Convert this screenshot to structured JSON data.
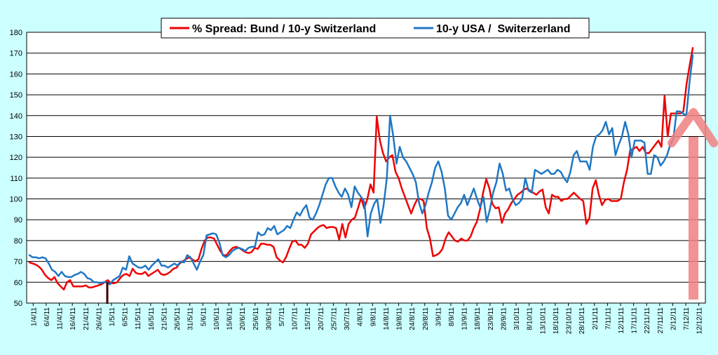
{
  "colors": {
    "background": "#ccffff",
    "plot_area": "#ffffff",
    "series_spread": "#ee0000",
    "series_usa": "#1f77c4",
    "arrow": "#f08080"
  },
  "chart_data": {
    "type": "line",
    "title": "",
    "xlabel": "",
    "ylabel": "",
    "ylim": [
      50,
      180
    ],
    "yticks": [
      50,
      60,
      70,
      80,
      90,
      100,
      110,
      120,
      130,
      140,
      150,
      160,
      170,
      180
    ],
    "grid": "horizontal",
    "legend": "top-center",
    "x_tick_labels": [
      "1/4/11",
      "6/4/11",
      "11/4/11",
      "16/4/11",
      "21/4/11",
      "26/4/11",
      "1/5/11",
      "6/5/11",
      "11/5/11",
      "16/5/11",
      "21/5/11",
      "26/5/11",
      "31/5/11",
      "5/6/11",
      "10/6/11",
      "15/6/11",
      "20/6/11",
      "25/6/11",
      "30/6/11",
      "5/7/11",
      "10/7/11",
      "15/7/11",
      "20/7/11",
      "25/7/11",
      "30/7/11",
      "4/8/11",
      "9/8/11",
      "14/8/11",
      "19/8/11",
      "24/8/11",
      "29/8/11",
      "3/9/11",
      "8/9/11",
      "13/9/11",
      "18/9/11",
      "23/9/11",
      "28/9/11",
      "3/10/11",
      "8/10/11",
      "13/10/11",
      "18/10/11",
      "23/10/11",
      "28/10/11",
      "2/11/11",
      "7/11/11",
      "12/11/11",
      "17/11/11",
      "22/11/11",
      "27/11/11",
      "2/12/11",
      "7/12/11",
      "12/12/11"
    ],
    "series": [
      {
        "name": "% Spread: Bund / 10-y Switzerland",
        "values": [
          69.5,
          69,
          68.5,
          67.5,
          66,
          63.5,
          62,
          61,
          62.5,
          59.5,
          58,
          56.5,
          60,
          61,
          58,
          58,
          58,
          58,
          58.5,
          57.5,
          57.5,
          58,
          58.5,
          59,
          60,
          61,
          59.5,
          59.5,
          60,
          62,
          63.5,
          64,
          63,
          66.5,
          64.5,
          64,
          64,
          65,
          63,
          64,
          65,
          66,
          64,
          63.5,
          64,
          65,
          66.5,
          67,
          69,
          70,
          71,
          72,
          71,
          70,
          71,
          76,
          80,
          81.5,
          81.5,
          81,
          78,
          75,
          73,
          73,
          75,
          76.5,
          77,
          76.5,
          75.5,
          74.5,
          74,
          74.5,
          76.5,
          76,
          78.5,
          78.5,
          78,
          78,
          77,
          72,
          70.5,
          69.5,
          72,
          76,
          79.5,
          80,
          78,
          78,
          76.5,
          78.5,
          83,
          84.5,
          86,
          87,
          87.5,
          86,
          86.5,
          86.5,
          86,
          80.5,
          88,
          81.5,
          88,
          90,
          91,
          95.5,
          100.5,
          95.5,
          100,
          107,
          103,
          139.5,
          128,
          122,
          118,
          120,
          121,
          113,
          110,
          105,
          101,
          97,
          93,
          97,
          100,
          100,
          99,
          86,
          81,
          72.5,
          73,
          74,
          76,
          81,
          84,
          82,
          80,
          79.5,
          81,
          80,
          80,
          82,
          86,
          89,
          95,
          103,
          109.5,
          105,
          97.5,
          95.5,
          96,
          88.5,
          93,
          95,
          98,
          100,
          102,
          103,
          104.5,
          105,
          104,
          103,
          102,
          103.5,
          104.5,
          96,
          93,
          102,
          101,
          101,
          99,
          100,
          100,
          101.5,
          103,
          101.5,
          100,
          99,
          88,
          91,
          105,
          109,
          102,
          97,
          99.5,
          100,
          99,
          99,
          99,
          100,
          108,
          114,
          123.5,
          124,
          125,
          123,
          125,
          122,
          122,
          124,
          126,
          128,
          125,
          149.5,
          130,
          141,
          141,
          141,
          141,
          142,
          155,
          164,
          172.5
        ]
      },
      {
        "name": "10-y USA /  Switerzerland",
        "values": [
          73,
          72,
          72,
          71.5,
          72,
          71.5,
          69,
          66,
          65,
          63,
          65,
          63,
          62.5,
          62.5,
          63.5,
          64,
          65,
          64,
          62,
          61.5,
          60,
          60,
          59.5,
          60,
          60,
          59,
          61,
          62,
          63,
          67,
          66,
          72.5,
          69,
          68,
          67,
          67,
          68,
          66,
          68,
          69.5,
          71,
          68,
          68,
          67,
          68,
          69,
          68,
          70,
          69.5,
          73,
          72,
          69,
          66,
          70,
          73,
          82.5,
          83,
          83.5,
          83,
          79,
          73,
          72,
          73,
          75,
          76,
          76.5,
          76,
          75,
          76.5,
          77,
          77,
          84,
          82.5,
          83,
          86,
          85,
          87,
          83,
          84,
          85,
          87,
          86,
          90,
          93.5,
          92,
          95,
          97,
          91,
          90,
          93,
          97,
          102,
          107,
          110,
          110,
          106,
          103,
          101,
          105,
          102,
          96,
          106,
          103,
          101,
          98.5,
          82,
          93,
          97.5,
          100,
          88.5,
          97,
          110,
          140,
          130,
          117,
          125,
          120,
          118,
          115,
          112,
          108,
          98,
          93,
          97,
          103,
          108,
          115,
          118,
          113,
          105,
          92,
          90,
          93,
          96,
          98,
          102,
          97,
          101,
          105,
          100,
          96,
          101,
          89,
          95,
          103,
          108,
          117,
          112,
          104,
          105,
          100,
          97,
          98,
          100,
          110,
          104,
          103,
          114,
          113,
          112,
          113,
          114,
          112,
          112,
          114,
          113,
          110,
          108,
          113,
          121,
          123,
          118,
          118,
          118,
          114,
          125,
          130,
          131,
          133,
          137,
          131,
          134,
          121,
          126,
          130,
          137,
          131,
          120,
          128,
          128,
          128,
          127,
          112,
          112,
          121,
          120,
          116,
          118,
          121,
          126,
          129,
          142,
          142,
          141,
          140,
          156,
          169
        ]
      }
    ]
  }
}
